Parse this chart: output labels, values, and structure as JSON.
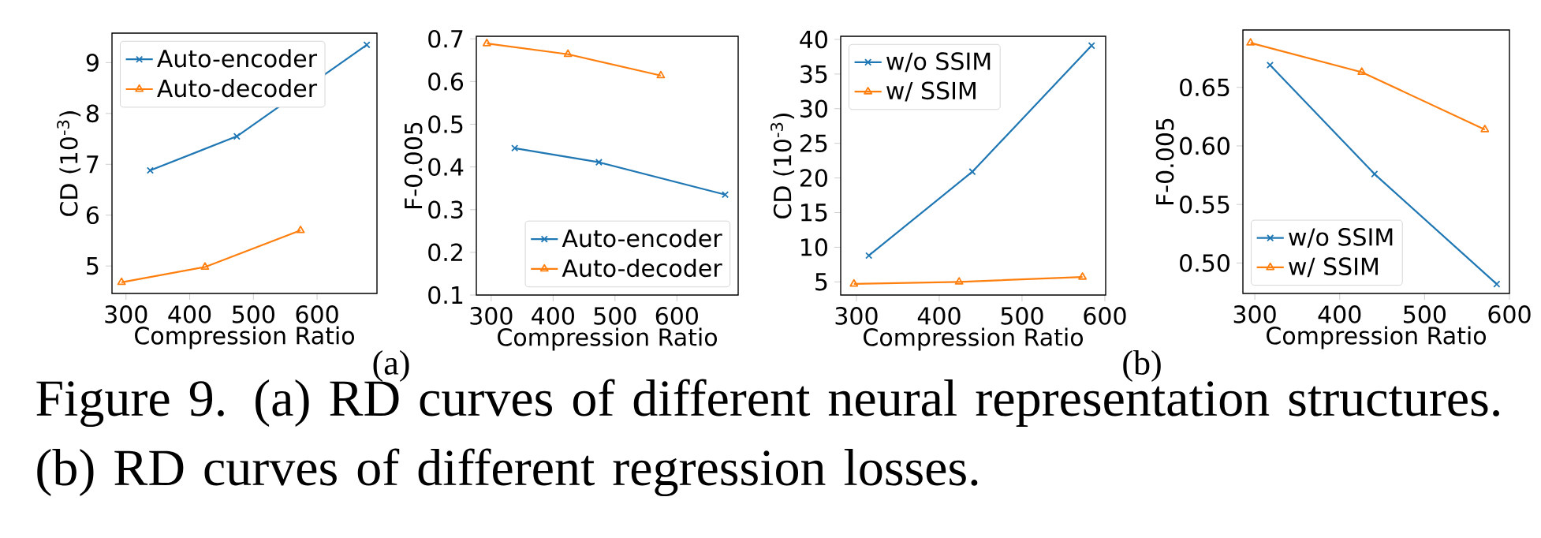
{
  "chart_data": [
    {
      "type": "line",
      "xlabel": "Compression Ratio",
      "ylabel": "CD (10$^{-3}$)",
      "xlim": [
        278,
        694
      ],
      "ylim": [
        4.46,
        9.58
      ],
      "xticks": [
        300,
        400,
        500,
        600
      ],
      "yticks": [
        5,
        6,
        7,
        8,
        9
      ],
      "legend": "top left",
      "annotations": [
        "(a)",
        "Figure 9. (a) RD curves of different neural representation structures. (b) RD curves of different regression losses."
      ],
      "series": [
        {
          "name": "Auto-encoder",
          "color": "#1f77b4",
          "marker": "cross",
          "x": [
            338,
            474,
            678
          ],
          "values": [
            6.88,
            7.55,
            9.35
          ]
        },
        {
          "name": "Auto-decoder",
          "color": "#ff7f0e",
          "marker": "triangle",
          "x": [
            293,
            424,
            574
          ],
          "values": [
            4.68,
            4.98,
            5.7
          ]
        }
      ]
    },
    {
      "type": "line",
      "xlabel": "Compression Ratio",
      "ylabel": "F-0.005",
      "xlim": [
        276,
        699
      ],
      "ylim": [
        0.1,
        0.706
      ],
      "xticks": [
        300,
        400,
        500,
        600
      ],
      "yticks": [
        0.1,
        0.2,
        0.3,
        0.4,
        0.5,
        0.6,
        0.7
      ],
      "legend": "bottom right",
      "series": [
        {
          "name": "Auto-encoder",
          "color": "#1f77b4",
          "marker": "cross",
          "x": [
            338,
            474,
            678
          ],
          "values": [
            0.444,
            0.411,
            0.335
          ]
        },
        {
          "name": "Auto-decoder",
          "color": "#ff7f0e",
          "marker": "triangle",
          "x": [
            293,
            424,
            574
          ],
          "values": [
            0.689,
            0.664,
            0.614
          ]
        }
      ]
    },
    {
      "type": "line",
      "xlabel": "Compression Ratio",
      "ylabel": "CD (10$^{-3}$)",
      "xlim": [
        281,
        601
      ],
      "ylim": [
        3.1,
        40.45
      ],
      "xticks": [
        300,
        400,
        500,
        600
      ],
      "yticks": [
        5,
        10,
        15,
        20,
        25,
        30,
        35,
        40
      ],
      "legend": "top left",
      "annotations": [
        "(b)"
      ],
      "series": [
        {
          "name": "w/o SSIM",
          "color": "#1f77b4",
          "marker": "cross",
          "x": [
            315,
            440,
            584
          ],
          "values": [
            8.8,
            20.9,
            39.1
          ]
        },
        {
          "name": "w/ SSIM",
          "color": "#ff7f0e",
          "marker": "triangle",
          "x": [
            297,
            424,
            573
          ],
          "values": [
            4.7,
            5.0,
            5.7
          ]
        }
      ]
    },
    {
      "type": "line",
      "xlabel": "Compression Ratio",
      "ylabel": "F-0.005",
      "xlim": [
        286,
        600
      ],
      "ylim": [
        0.474,
        0.699
      ],
      "xticks": [
        300,
        400,
        500,
        600
      ],
      "yticks": [
        {
          "value": 0.5,
          "label": "0.50"
        },
        {
          "value": 0.55,
          "label": "0.55"
        },
        {
          "value": 0.6,
          "label": "0.60"
        },
        {
          "value": 0.65,
          "label": "0.65"
        }
      ],
      "legend": "bottom left",
      "series": [
        {
          "name": "w/o SSIM",
          "color": "#1f77b4",
          "marker": "cross",
          "x": [
            318,
            441,
            585
          ],
          "values": [
            0.669,
            0.576,
            0.482
          ]
        },
        {
          "name": "w/ SSIM",
          "color": "#ff7f0e",
          "marker": "triangle",
          "x": [
            295,
            426,
            571
          ],
          "values": [
            0.688,
            0.663,
            0.614
          ]
        }
      ]
    }
  ]
}
